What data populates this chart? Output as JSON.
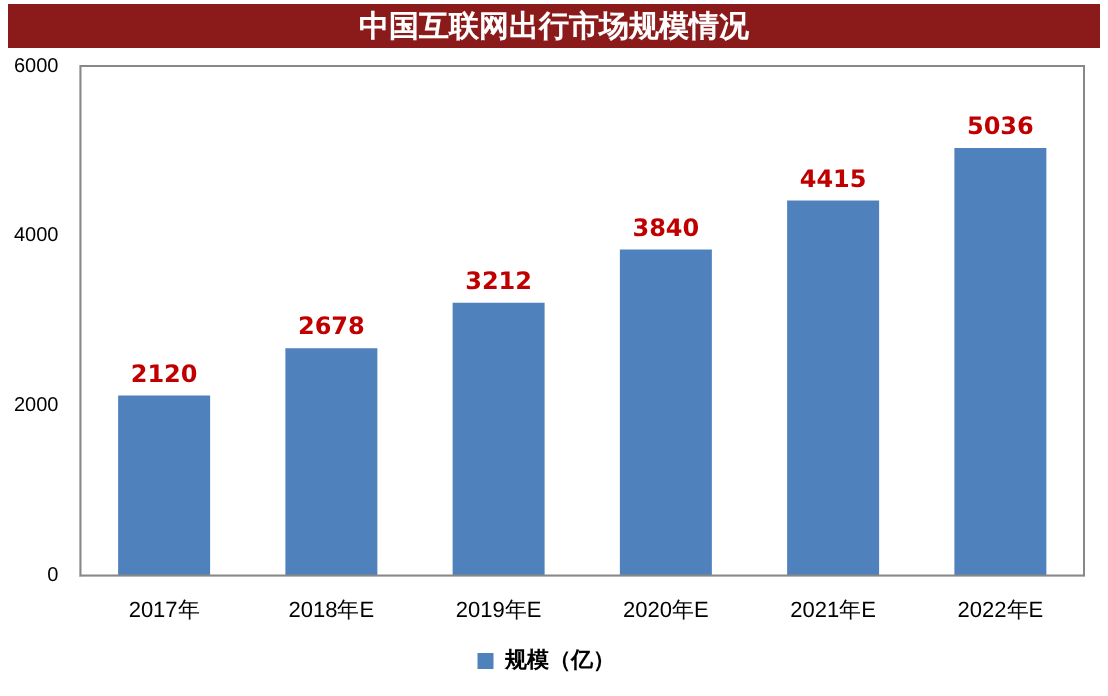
{
  "chart_data": {
    "type": "bar",
    "title": "中国互联网出行市场规模情况",
    "categories": [
      "2017年",
      "2018年E",
      "2019年E",
      "2020年E",
      "2021年E",
      "2022年E"
    ],
    "series": [
      {
        "name": "规模（亿）",
        "color": "#4f81bd",
        "values": [
          2120,
          2678,
          3212,
          3840,
          4415,
          5036
        ]
      }
    ],
    "ylim": [
      0,
      6000
    ],
    "yticks": [
      0,
      2000,
      4000,
      6000
    ],
    "grid": false,
    "legend": "bottom",
    "data_labels": true
  }
}
